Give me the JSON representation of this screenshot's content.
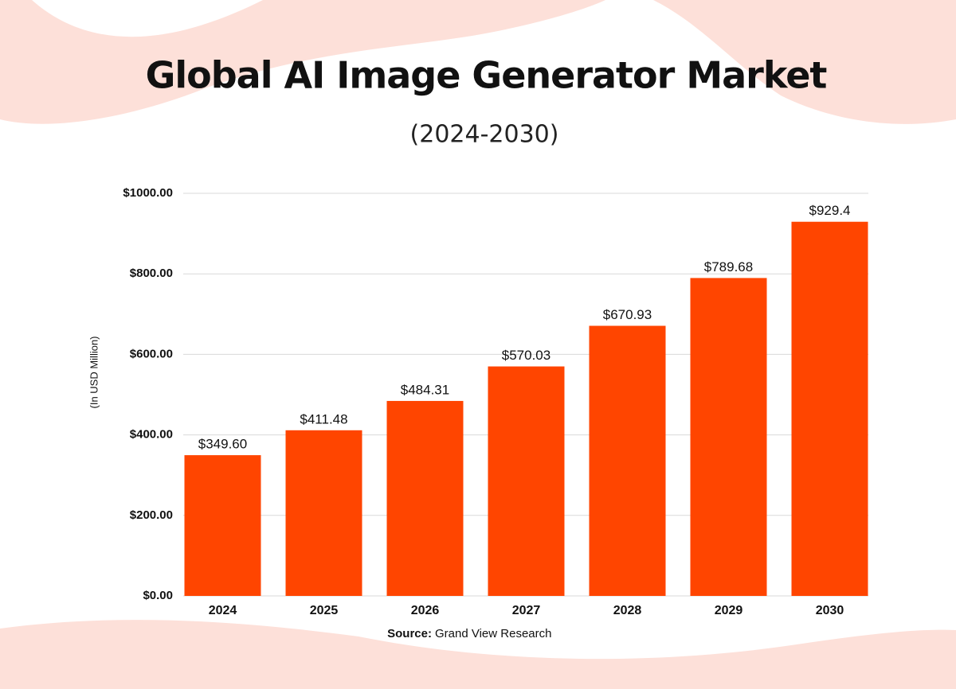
{
  "chart_data": {
    "type": "bar",
    "title": "Global AI Image Generator Market",
    "subtitle": "(2024-2030)",
    "y_label": "(In USD Million)",
    "source_label": "Source:",
    "source": "Grand View Research",
    "categories": [
      "2024",
      "2025",
      "2026",
      "2027",
      "2028",
      "2029",
      "2030"
    ],
    "values": [
      349.6,
      411.48,
      484.31,
      570.03,
      670.93,
      789.68,
      929.4
    ],
    "value_labels": [
      "$349.60",
      "$411.48",
      "$484.31",
      "$570.03",
      "$670.93",
      "$789.68",
      "$929.4"
    ],
    "color": "#ff4500",
    "ylim": [
      0,
      1000
    ],
    "yticks": [
      {
        "value": 0,
        "label": "$0.00"
      },
      {
        "value": 200,
        "label": "$200.00"
      },
      {
        "value": 400,
        "label": "$400.00"
      },
      {
        "value": 600,
        "label": "$600.00"
      },
      {
        "value": 800,
        "label": "$800.00"
      },
      {
        "value": 1000,
        "label": "$1000.00"
      }
    ],
    "grid": true
  }
}
